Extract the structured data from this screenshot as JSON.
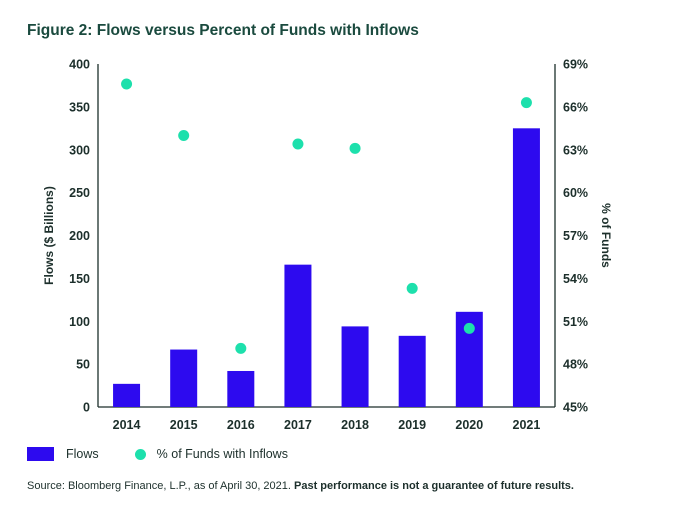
{
  "title": "Figure 2: Flows versus Percent of Funds with Inflows",
  "colors": {
    "bar": "#2d0aef",
    "dot": "#1de0ac",
    "axis": "#1c2f2b",
    "title": "#1a4a3e"
  },
  "chart_data": {
    "type": "bar",
    "categories": [
      "2014",
      "2015",
      "2016",
      "2017",
      "2018",
      "2019",
      "2020",
      "2021"
    ],
    "series": [
      {
        "name": "Flows",
        "type": "bar",
        "axis": "left",
        "values": [
          27,
          67,
          42,
          166,
          94,
          83,
          111,
          325
        ]
      },
      {
        "name": "% of Funds with Inflows",
        "type": "scatter",
        "axis": "right",
        "values": [
          67.6,
          64.0,
          49.1,
          63.4,
          63.1,
          53.3,
          50.5,
          66.3
        ]
      }
    ],
    "y_left": {
      "label": "Flows ($ Billions)",
      "range": [
        0,
        400
      ],
      "ticks": [
        "0",
        "50",
        "100",
        "150",
        "200",
        "250",
        "300",
        "350",
        "400"
      ]
    },
    "y_right": {
      "label": "% of Funds",
      "range": [
        45,
        69
      ],
      "ticks": [
        "45%",
        "48%",
        "51%",
        "54%",
        "57%",
        "60%",
        "63%",
        "66%",
        "69%"
      ]
    },
    "grid": false,
    "legend_position": "bottom-left"
  },
  "legend": {
    "bar_label": "Flows",
    "dot_label": "% of Funds with Inflows"
  },
  "source": {
    "text": "Source: Bloomberg Finance, L.P., as of April 30, 2021. ",
    "bold": "Past performance is not a guarantee of future results."
  }
}
